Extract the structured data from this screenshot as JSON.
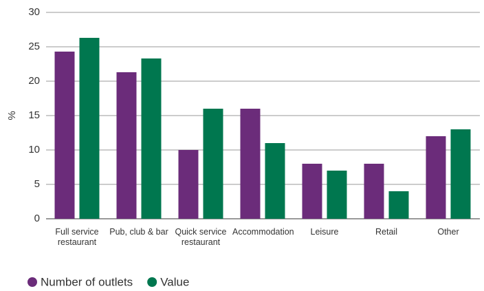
{
  "chart_data": {
    "type": "bar",
    "ylabel": "%",
    "categories": [
      "Full service restaurant",
      "Pub, club & bar",
      "Quick service restaurant",
      "Accommodation",
      "Leisure",
      "Retail",
      "Other"
    ],
    "series": [
      {
        "name": "Number of outlets",
        "color": "#6b2c7a",
        "values": [
          24.3,
          21.3,
          10,
          16,
          8,
          8,
          12
        ]
      },
      {
        "name": "Value",
        "color": "#00774f",
        "values": [
          26.3,
          23.3,
          16,
          11,
          7,
          4,
          13
        ]
      }
    ],
    "ylim": [
      0,
      30
    ],
    "yticks": [
      0,
      5,
      10,
      15,
      20,
      25,
      30
    ],
    "grid": true,
    "legend": "bottom-left"
  }
}
